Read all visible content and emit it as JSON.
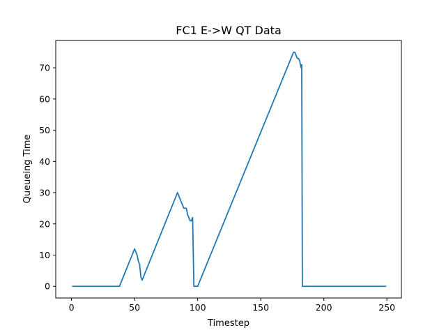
{
  "chart_data": {
    "type": "line",
    "title": "FC1 E->W QT Data",
    "xlabel": "Timestep",
    "ylabel": "Queueing Time",
    "xlim": [
      -12.5,
      261.5
    ],
    "ylim": [
      -3.75,
      78.75
    ],
    "xticks": [
      0,
      50,
      100,
      150,
      200,
      250
    ],
    "yticks": [
      0,
      10,
      20,
      30,
      40,
      50,
      60,
      70
    ],
    "grid": false,
    "color": "#1f77b4",
    "series": [
      {
        "x": [
          1,
          38,
          50,
          51,
          52,
          53,
          54,
          55,
          56,
          84,
          85,
          86,
          87,
          88,
          89,
          90,
          91,
          92,
          93,
          94,
          95,
          96,
          97,
          98,
          99,
          100,
          176,
          177,
          178,
          179,
          180,
          181,
          182,
          182.5,
          183,
          184,
          249
        ],
        "y": [
          0,
          0,
          12,
          11,
          10,
          8,
          7,
          3,
          2,
          30,
          29,
          28,
          27,
          26,
          25,
          25,
          25,
          23,
          22,
          21,
          21,
          22,
          0,
          0,
          0,
          0,
          75,
          75,
          74,
          73,
          73,
          72,
          70,
          71,
          0,
          0,
          0
        ]
      }
    ]
  }
}
